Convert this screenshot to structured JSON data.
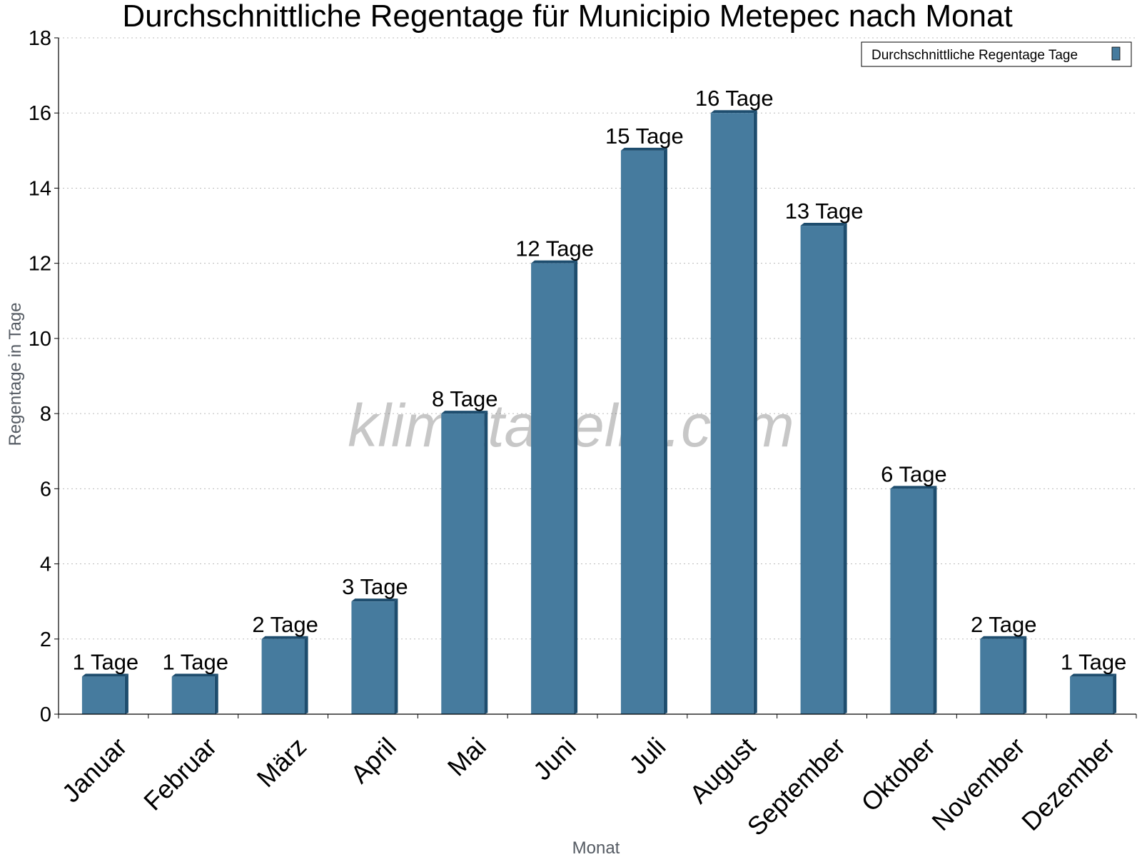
{
  "chart_data": {
    "type": "bar",
    "title": "Durchschnittliche Regentage für Municipio Metepec nach Monat",
    "xlabel": "Monat",
    "ylabel": "Regentage in Tage",
    "categories": [
      "Januar",
      "Februar",
      "März",
      "April",
      "Mai",
      "Juni",
      "Juli",
      "August",
      "September",
      "Oktober",
      "November",
      "Dezember"
    ],
    "series": [
      {
        "name": "Durchschnittliche Regentage Tage",
        "values": [
          1,
          1,
          2,
          3,
          8,
          12,
          15,
          16,
          13,
          6,
          2,
          1
        ],
        "data_labels": [
          "1 Tage",
          "1 Tage",
          "2 Tage",
          "3 Tage",
          "8 Tage",
          "12 Tage",
          "15 Tage",
          "16 Tage",
          "13 Tage",
          "6 Tage",
          "2 Tage",
          "1 Tage"
        ]
      }
    ],
    "ylim": [
      0,
      18
    ],
    "yticks": [
      "0",
      "2",
      "4",
      "6",
      "8",
      "10",
      "12",
      "14",
      "16",
      "18"
    ],
    "grid": true,
    "legend_position": "top-right",
    "colors": {
      "bar": "#467b9e",
      "bar_side": "#1e4d6e",
      "grid": "#bbbbbb"
    }
  },
  "watermark": "klimatabelle.com"
}
